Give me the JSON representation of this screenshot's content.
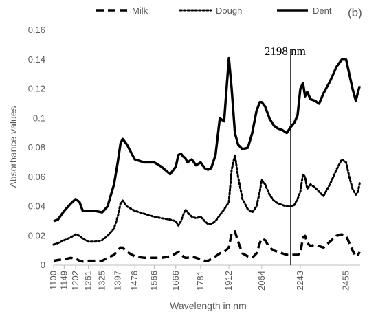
{
  "chart_data": {
    "type": "line",
    "panel_label": "(b)",
    "xlabel": "Wavelength in nm",
    "ylabel": "Absorbance values",
    "xlim": [
      1100,
      2520
    ],
    "ylim": [
      0,
      0.16
    ],
    "x_ticks": [
      "1100",
      "1149",
      "1202",
      "1261",
      "1325",
      "1397",
      "1476",
      "1566",
      "1666",
      "1781",
      "1912",
      "2064",
      "2243",
      "2455"
    ],
    "x_tick_values": [
      1100,
      1149,
      1202,
      1261,
      1325,
      1397,
      1476,
      1566,
      1666,
      1781,
      1912,
      2064,
      2243,
      2455
    ],
    "y_ticks": [
      "0",
      "0.02",
      "0.04",
      "0.06",
      "0.08",
      "0.1",
      "0.12",
      "0.14",
      "0.16"
    ],
    "y_tick_values": [
      0,
      0.02,
      0.04,
      0.06,
      0.08,
      0.1,
      0.12,
      0.14,
      0.16
    ],
    "grid": false,
    "legend_position": "top",
    "annotation": {
      "label": "2198 nm",
      "x": 2198
    },
    "x": [
      1100,
      1120,
      1149,
      1180,
      1202,
      1220,
      1235,
      1261,
      1290,
      1325,
      1350,
      1380,
      1397,
      1410,
      1420,
      1440,
      1476,
      1520,
      1566,
      1600,
      1640,
      1666,
      1678,
      1690,
      1700,
      1710,
      1720,
      1740,
      1760,
      1781,
      1800,
      1815,
      1830,
      1850,
      1870,
      1890,
      1912,
      1925,
      1940,
      1955,
      1975,
      2000,
      2020,
      2040,
      2055,
      2064,
      2080,
      2100,
      2120,
      2140,
      2160,
      2180,
      2198,
      2215,
      2230,
      2243,
      2255,
      2265,
      2275,
      2290,
      2310,
      2330,
      2350,
      2380,
      2410,
      2435,
      2455,
      2470,
      2485,
      2500,
      2510,
      2518
    ],
    "series": [
      {
        "name": "Milk",
        "color": "#000000",
        "style": "dashed",
        "values": [
          0.003,
          0.0035,
          0.004,
          0.005,
          0.0045,
          0.003,
          0.0025,
          0.003,
          0.003,
          0.003,
          0.005,
          0.007,
          0.01,
          0.012,
          0.012,
          0.009,
          0.006,
          0.005,
          0.005,
          0.005,
          0.006,
          0.008,
          0.009,
          0.008,
          0.006,
          0.005,
          0.005,
          0.006,
          0.005,
          0.004,
          0.003,
          0.003,
          0.004,
          0.006,
          0.008,
          0.009,
          0.012,
          0.022,
          0.023,
          0.016,
          0.008,
          0.006,
          0.005,
          0.008,
          0.015,
          0.018,
          0.017,
          0.012,
          0.01,
          0.009,
          0.008,
          0.007,
          0.007,
          0.007,
          0.007,
          0.008,
          0.019,
          0.02,
          0.015,
          0.013,
          0.014,
          0.013,
          0.012,
          0.016,
          0.02,
          0.021,
          0.02,
          0.015,
          0.01,
          0.006,
          0.007,
          0.009
        ]
      },
      {
        "name": "Dough",
        "color": "#000000",
        "style": "dotted",
        "values": [
          0.014,
          0.015,
          0.017,
          0.019,
          0.021,
          0.02,
          0.018,
          0.016,
          0.016,
          0.017,
          0.02,
          0.025,
          0.033,
          0.042,
          0.044,
          0.04,
          0.037,
          0.035,
          0.033,
          0.032,
          0.031,
          0.03,
          0.027,
          0.03,
          0.034,
          0.038,
          0.036,
          0.033,
          0.032,
          0.033,
          0.03,
          0.028,
          0.028,
          0.03,
          0.034,
          0.038,
          0.043,
          0.065,
          0.075,
          0.06,
          0.045,
          0.038,
          0.036,
          0.04,
          0.05,
          0.058,
          0.055,
          0.048,
          0.044,
          0.042,
          0.041,
          0.04,
          0.04,
          0.041,
          0.045,
          0.05,
          0.062,
          0.06,
          0.052,
          0.055,
          0.053,
          0.05,
          0.047,
          0.055,
          0.065,
          0.072,
          0.07,
          0.06,
          0.052,
          0.048,
          0.05,
          0.056
        ]
      },
      {
        "name": "Dent",
        "color": "#000000",
        "style": "solid",
        "values": [
          0.03,
          0.031,
          0.037,
          0.042,
          0.045,
          0.043,
          0.037,
          0.037,
          0.037,
          0.036,
          0.04,
          0.055,
          0.07,
          0.083,
          0.086,
          0.082,
          0.072,
          0.07,
          0.07,
          0.067,
          0.062,
          0.067,
          0.075,
          0.076,
          0.074,
          0.073,
          0.07,
          0.072,
          0.068,
          0.07,
          0.066,
          0.065,
          0.066,
          0.075,
          0.1,
          0.098,
          0.141,
          0.12,
          0.09,
          0.082,
          0.079,
          0.08,
          0.09,
          0.105,
          0.111,
          0.111,
          0.108,
          0.1,
          0.095,
          0.093,
          0.092,
          0.09,
          0.094,
          0.097,
          0.102,
          0.12,
          0.124,
          0.115,
          0.118,
          0.113,
          0.112,
          0.11,
          0.117,
          0.125,
          0.135,
          0.14,
          0.14,
          0.13,
          0.12,
          0.112,
          0.118,
          0.122
        ]
      }
    ]
  }
}
